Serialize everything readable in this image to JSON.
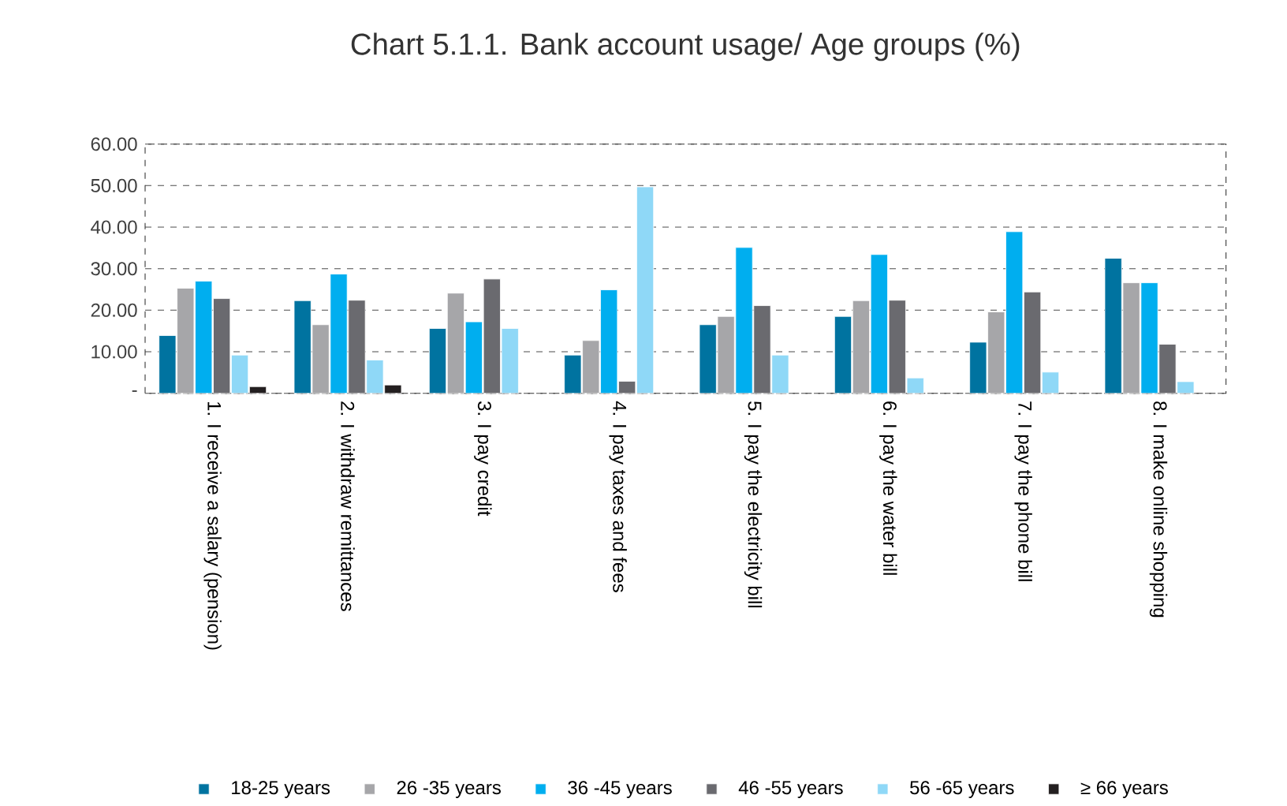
{
  "chart_data": {
    "type": "bar",
    "title": "Chart 5.1.1. Bank account usage/ Age groups (%)",
    "categories": [
      "1. I receive a salary (pension)",
      "2. I withdraw remittances",
      "3. I pay credit",
      "4. I pay taxes and fees",
      "5. I pay the electricity bill",
      "6. I pay the water bill",
      "7. I pay the phone bill",
      "8. I make online shopping"
    ],
    "series": [
      {
        "name": "18-25 years",
        "color": "#0073a0",
        "values": [
          13.9,
          22.3,
          15.6,
          9.2,
          16.5,
          18.5,
          12.3,
          32.5
        ]
      },
      {
        "name": "26 -35 years",
        "color": "#a6a6a9",
        "values": [
          25.3,
          16.5,
          24.1,
          12.7,
          18.5,
          22.3,
          19.6,
          26.6
        ]
      },
      {
        "name": "36 -45 years",
        "color": "#00aeef",
        "values": [
          27.0,
          28.7,
          17.2,
          24.9,
          35.1,
          33.4,
          38.9,
          26.6
        ]
      },
      {
        "name": "46 -55 years",
        "color": "#6a6a6f",
        "values": [
          22.8,
          22.4,
          27.5,
          2.9,
          21.1,
          22.4,
          24.4,
          11.8
        ]
      },
      {
        "name": "56 -65 years",
        "color": "#8fd8f7",
        "values": [
          9.2,
          8.0,
          15.6,
          49.7,
          9.2,
          3.7,
          5.1,
          2.8
        ]
      },
      {
        "name": "≥ 66 years",
        "color": "#231f20",
        "values": [
          1.6,
          2.0,
          null,
          null,
          null,
          null,
          null,
          null
        ]
      }
    ],
    "ylim": [
      0,
      60
    ],
    "yticks": [
      {
        "value": 0,
        "label": "-"
      },
      {
        "value": 10,
        "label": "10.00"
      },
      {
        "value": 20,
        "label": "20.00"
      },
      {
        "value": 30,
        "label": "30.00"
      },
      {
        "value": 40,
        "label": "40.00"
      },
      {
        "value": 50,
        "label": "50.00"
      },
      {
        "value": 60,
        "label": "60.00"
      }
    ],
    "grid": "y",
    "legend": "bottom"
  }
}
